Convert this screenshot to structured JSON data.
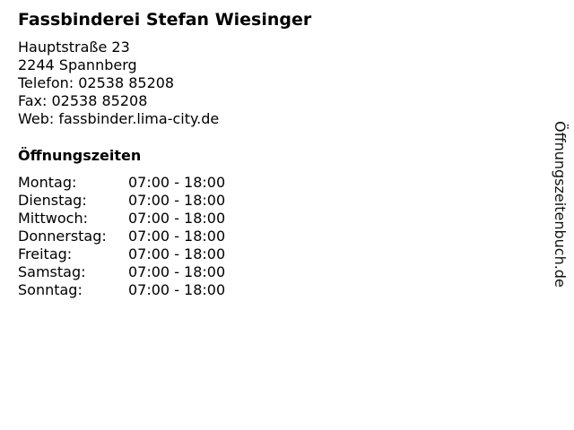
{
  "business": {
    "name": "Fassbinderei Stefan Wiesinger",
    "street": "Hauptstraße 23",
    "city": "2244 Spannberg",
    "phone": "Telefon: 02538 85208",
    "fax": "Fax: 02538 85208",
    "web": "Web: fassbinder.lima-city.de"
  },
  "hours": {
    "heading": "Öffnungszeiten",
    "rows": [
      {
        "day": "Montag:",
        "time": "07:00 - 18:00"
      },
      {
        "day": "Dienstag:",
        "time": "07:00 - 18:00"
      },
      {
        "day": "Mittwoch:",
        "time": "07:00 - 18:00"
      },
      {
        "day": "Donnerstag:",
        "time": "07:00 - 18:00"
      },
      {
        "day": "Freitag:",
        "time": "07:00 - 18:00"
      },
      {
        "day": "Samstag:",
        "time": "07:00 - 18:00"
      },
      {
        "day": "Sonntag:",
        "time": "07:00 - 18:00"
      }
    ]
  },
  "watermark": "Öffnungszeitenbuch.de"
}
